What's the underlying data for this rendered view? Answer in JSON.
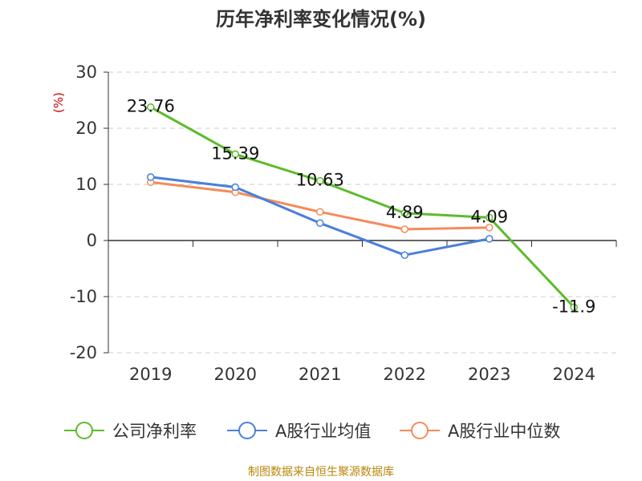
{
  "title": "历年净利率变化情况(%)",
  "source": "制图数据来自恒生聚源数据库",
  "chart_data": {
    "type": "line",
    "title": "历年净利率变化情况(%)",
    "ylabel": "(%)",
    "xlabel": "",
    "categories": [
      "2019",
      "2020",
      "2021",
      "2022",
      "2023",
      "2024"
    ],
    "ylim": [
      -20,
      30
    ],
    "yticks": [
      30,
      20,
      10,
      0,
      -10,
      -20
    ],
    "grid": true,
    "legend_position": "bottom",
    "series": [
      {
        "name": "公司净利率",
        "color": "#5dbb2c",
        "values": [
          23.76,
          15.39,
          10.63,
          4.89,
          4.09,
          -11.9
        ],
        "labels": [
          "23.76",
          "15.39",
          "10.63",
          "4.89",
          "4.09",
          "-11.9"
        ]
      },
      {
        "name": "A股行业均值",
        "color": "#4a7fdc",
        "values": [
          11.3,
          9.5,
          3.1,
          -2.6,
          0.3,
          null
        ]
      },
      {
        "name": "A股行业中位数",
        "color": "#f58a5a",
        "values": [
          10.4,
          8.6,
          5.1,
          2.0,
          2.3,
          null
        ]
      }
    ]
  }
}
